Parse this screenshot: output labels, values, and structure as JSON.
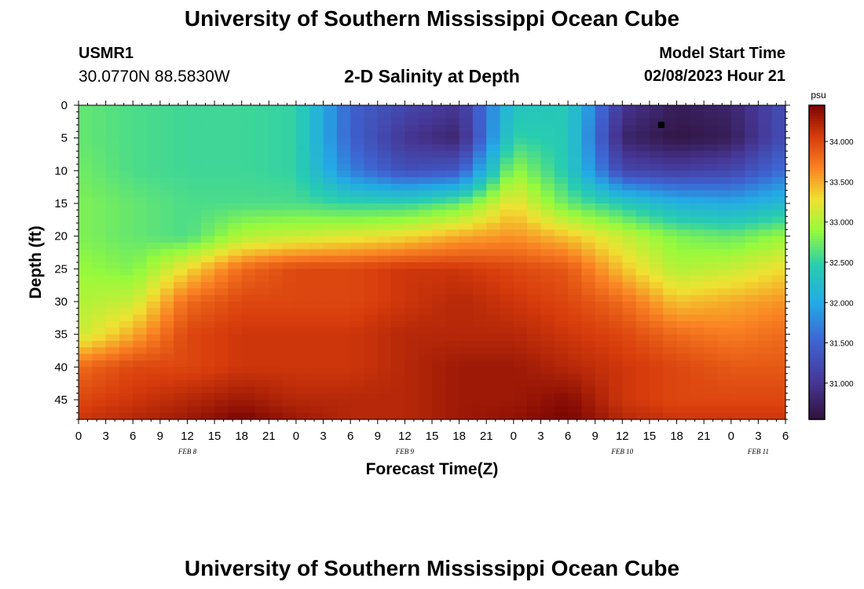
{
  "header": {
    "title": "University of Southern Mississippi Ocean Cube",
    "station_id": "USMR1",
    "station_coords": "30.0770N  88.5830W",
    "subtitle": "2-D Salinity at Depth",
    "model_start_label": "Model Start Time",
    "model_start_value": "02/08/2023 Hour 21"
  },
  "footer": {
    "title": "University of Southern Mississippi Ocean Cube"
  },
  "chart_data": {
    "type": "heatmap",
    "ylabel": "Depth (ft)",
    "xlabel": "Forecast Time(Z)",
    "x_hours_range": [
      0,
      78
    ],
    "x_tick_hours": [
      0,
      3,
      6,
      9,
      12,
      15,
      18,
      21,
      24,
      27,
      30,
      33,
      36,
      39,
      42,
      45,
      48,
      51,
      54,
      57,
      60,
      63,
      66,
      69,
      72,
      75,
      78
    ],
    "x_tick_labels": [
      "0",
      "3",
      "6",
      "9",
      "12",
      "15",
      "18",
      "21",
      "0",
      "3",
      "6",
      "9",
      "12",
      "15",
      "18",
      "21",
      "0",
      "3",
      "6",
      "9",
      "12",
      "15",
      "18",
      "21",
      "0",
      "3",
      "6"
    ],
    "date_labels": [
      {
        "label": "FEB 8",
        "hour": 12
      },
      {
        "label": "FEB 9",
        "hour": 36
      },
      {
        "label": "FEB 10",
        "hour": 60
      },
      {
        "label": "FEB 11",
        "hour": 75
      }
    ],
    "ylim": [
      0,
      48
    ],
    "y_ticks": [
      0,
      5,
      10,
      15,
      20,
      25,
      30,
      35,
      40,
      45
    ],
    "colorbar": {
      "unit": "psu",
      "range": [
        30.55,
        34.45
      ],
      "ticks": [
        "31.000",
        "31.500",
        "32.000",
        "32.500",
        "33.000",
        "33.500",
        "34.000"
      ],
      "tick_values": [
        31.0,
        31.5,
        32.0,
        32.5,
        33.0,
        33.5,
        34.0
      ]
    },
    "marker": {
      "hour": 64.3,
      "depth": 3
    },
    "salinity_grid": {
      "hours": [
        0,
        6,
        12,
        18,
        24,
        30,
        36,
        42,
        48,
        54,
        60,
        66,
        72,
        78
      ],
      "depths": [
        0,
        5,
        10,
        15,
        20,
        25,
        30,
        35,
        40,
        45,
        48
      ],
      "values": [
        [
          32.7,
          32.6,
          32.55,
          32.55,
          32.5,
          31.5,
          31.2,
          31.0,
          32.3,
          32.4,
          31.0,
          30.7,
          30.8,
          31.3
        ],
        [
          32.7,
          32.6,
          32.55,
          32.55,
          32.5,
          31.5,
          31.0,
          30.8,
          32.5,
          32.4,
          30.8,
          30.6,
          30.7,
          31.3
        ],
        [
          32.75,
          32.6,
          32.55,
          32.55,
          32.5,
          31.7,
          31.3,
          31.4,
          32.9,
          32.4,
          31.2,
          31.1,
          31.2,
          31.6
        ],
        [
          32.8,
          32.7,
          32.6,
          32.6,
          32.6,
          32.5,
          32.5,
          32.7,
          33.3,
          32.7,
          32.4,
          32.1,
          32.0,
          32.2
        ],
        [
          32.8,
          32.7,
          32.6,
          33.0,
          33.1,
          33.2,
          33.3,
          33.5,
          33.6,
          33.4,
          33.1,
          32.8,
          32.7,
          32.9
        ],
        [
          32.9,
          32.8,
          33.3,
          33.8,
          34.0,
          34.0,
          34.1,
          34.1,
          34.0,
          33.9,
          33.4,
          33.0,
          33.1,
          33.3
        ],
        [
          33.0,
          33.1,
          33.8,
          34.0,
          34.0,
          34.0,
          34.1,
          34.2,
          34.1,
          34.0,
          33.8,
          33.4,
          33.5,
          33.6
        ],
        [
          33.1,
          33.5,
          34.0,
          34.1,
          34.1,
          34.1,
          34.2,
          34.2,
          34.2,
          34.1,
          34.0,
          33.8,
          33.7,
          33.8
        ],
        [
          33.8,
          34.0,
          34.0,
          34.1,
          34.1,
          34.1,
          34.2,
          34.3,
          34.3,
          34.2,
          34.1,
          34.0,
          33.9,
          33.9
        ],
        [
          34.0,
          34.1,
          34.2,
          34.3,
          34.2,
          34.2,
          34.2,
          34.3,
          34.3,
          34.4,
          34.1,
          34.0,
          34.0,
          34.0
        ],
        [
          34.1,
          34.2,
          34.3,
          34.45,
          34.3,
          34.2,
          34.2,
          34.3,
          34.35,
          34.45,
          34.2,
          34.1,
          34.1,
          34.1
        ]
      ]
    }
  }
}
